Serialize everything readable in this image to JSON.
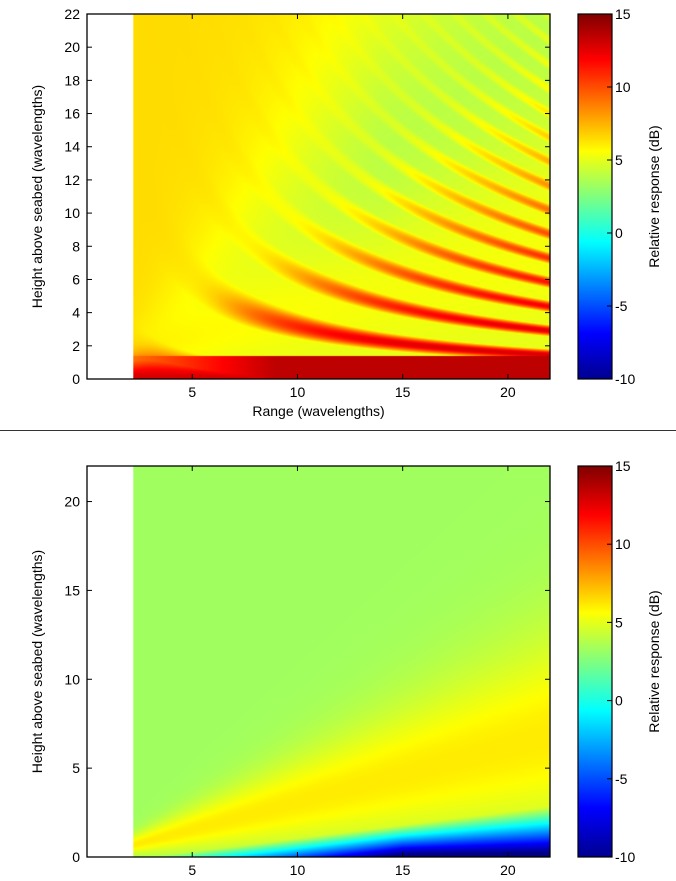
{
  "chart_data": [
    {
      "type": "heatmap",
      "title": "",
      "xlabel": "Range (wavelengths)",
      "ylabel": "Height above seabed (wavelengths)",
      "xlim": [
        0,
        22
      ],
      "ylim": [
        0,
        22
      ],
      "xticks": [
        5,
        10,
        15,
        20
      ],
      "yticks": [
        0,
        2,
        4,
        6,
        8,
        10,
        12,
        14,
        16,
        18,
        20,
        22
      ],
      "data_x_start": 2.2,
      "colorbar": {
        "label": "Relative response (dB)",
        "min": -10,
        "max": 15,
        "ticks": [
          -10,
          -5,
          0,
          5,
          10,
          15
        ]
      },
      "pattern": "interference",
      "samples": [
        {
          "range": 5,
          "height": 0.5,
          "db": 10
        },
        {
          "range": 10,
          "height": 0.3,
          "db": 13
        },
        {
          "range": 15,
          "height": 0.5,
          "db": 13
        },
        {
          "range": 10,
          "height": 7,
          "db": 10
        },
        {
          "range": 15,
          "height": 11,
          "db": 10
        },
        {
          "range": 20,
          "height": 16,
          "db": 10
        },
        {
          "range": 15,
          "height": 17,
          "db": 0
        },
        {
          "range": 5,
          "height": 15,
          "db": 6
        }
      ]
    },
    {
      "type": "heatmap",
      "title": "",
      "xlabel": "Range (wavelengths)",
      "ylabel": "Height above seabed (wavelengths)",
      "xlim": [
        0,
        22
      ],
      "ylim": [
        0,
        22
      ],
      "xticks": [
        5,
        10,
        15,
        20
      ],
      "yticks": [
        0,
        5,
        10,
        15,
        20
      ],
      "data_x_start": 2.2,
      "colorbar": {
        "label": "Relative response (dB)",
        "min": -10,
        "max": 15,
        "ticks": [
          -10,
          -5,
          0,
          5,
          10,
          15
        ]
      },
      "pattern": "smooth",
      "samples": [
        {
          "range": 5,
          "height": 15,
          "db": 3
        },
        {
          "range": 15,
          "height": 6,
          "db": 6
        },
        {
          "range": 15,
          "height": 1.5,
          "db": 0
        },
        {
          "range": 20,
          "height": 0.5,
          "db": -9
        }
      ]
    }
  ]
}
